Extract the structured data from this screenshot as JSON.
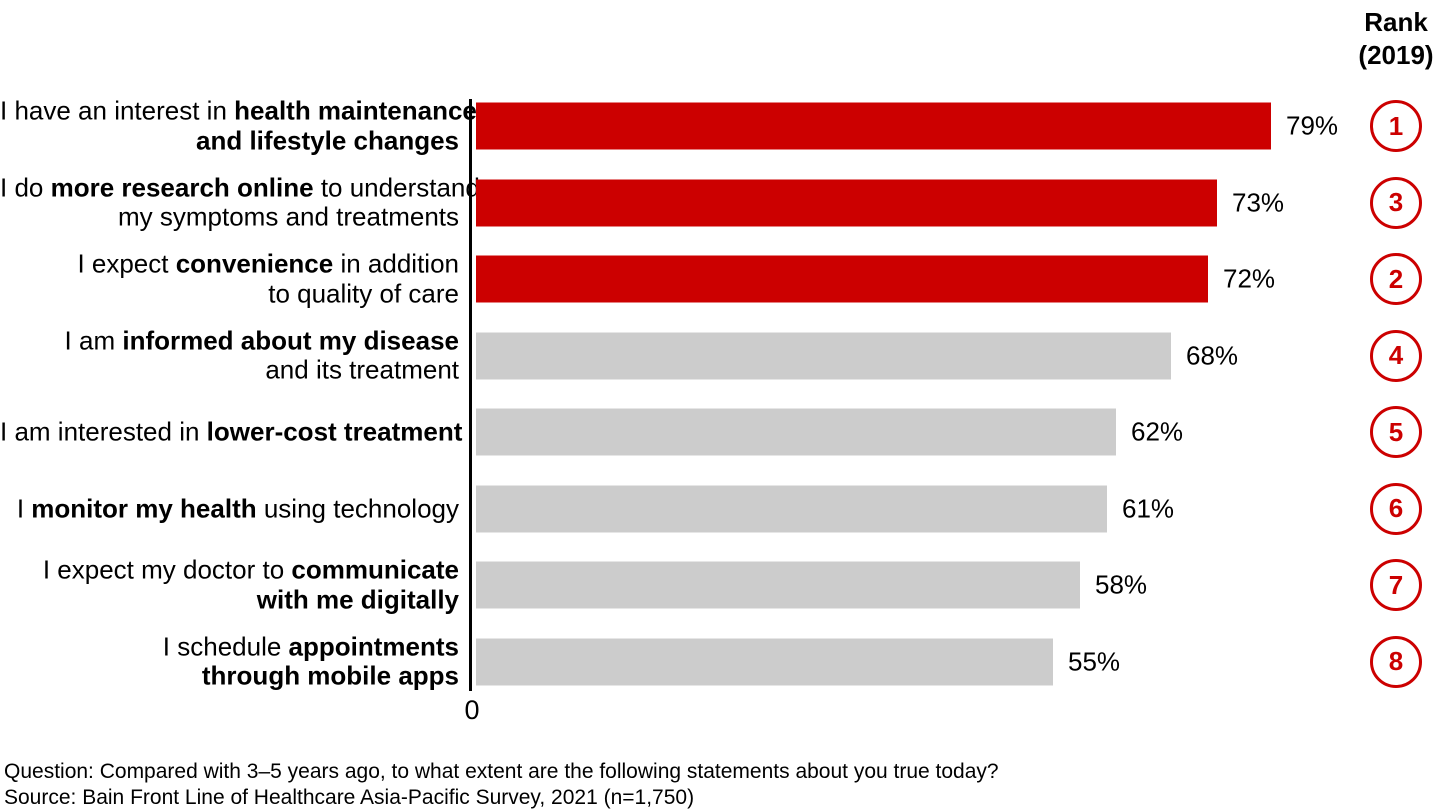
{
  "rank_header": {
    "line1": "Rank",
    "line2": "(2019)"
  },
  "axis": {
    "zero_label": "0"
  },
  "footer": {
    "question": "Question: Compared with 3–5 years ago, to what extent are the following statements about you true today?",
    "source": "Source: Bain Front Line of Healthcare Asia-Pacific Survey, 2021 (n=1,750)"
  },
  "colors": {
    "highlight_bar": "#CC0000",
    "muted_bar": "#CCCCCC",
    "rank_ring": "#CC0000",
    "rank_number": "#CC0000",
    "axis": "#000000",
    "text": "#000000"
  },
  "chart_data": {
    "type": "bar",
    "orientation": "horizontal",
    "unit": "percent",
    "title": "",
    "xlabel": "",
    "ylabel": "",
    "x_origin_tick": "0",
    "legend": null,
    "rank_column_title": "Rank (2019)",
    "categories": [
      "I have an interest in health maintenance and lifestyle changes",
      "I do more research online to understand my symptoms and treatments",
      "I expect convenience in addition to quality of care",
      "I am informed about my disease and its treatment",
      "I am interested in lower-cost treatment",
      "I monitor my health using technology",
      "I expect my doctor to communicate with me digitally",
      "I schedule appointments through mobile apps"
    ],
    "values": [
      79,
      73,
      72,
      68,
      62,
      61,
      58,
      55
    ],
    "ranks_2019": [
      1,
      3,
      2,
      4,
      5,
      6,
      7,
      8
    ],
    "items": [
      {
        "label_lines": [
          [
            {
              "t": "I have an interest in ",
              "b": false
            },
            {
              "t": "health maintenance",
              "b": true
            }
          ],
          [
            {
              "t": "and lifestyle changes",
              "b": true
            }
          ]
        ],
        "value": 79,
        "value_label": "79%",
        "emphasis": true,
        "rank_2019": "1"
      },
      {
        "label_lines": [
          [
            {
              "t": "I do ",
              "b": false
            },
            {
              "t": "more research online",
              "b": true
            },
            {
              "t": " to understand",
              "b": false
            }
          ],
          [
            {
              "t": "my symptoms and treatments",
              "b": false
            }
          ]
        ],
        "value": 73,
        "value_label": "73%",
        "emphasis": true,
        "rank_2019": "3"
      },
      {
        "label_lines": [
          [
            {
              "t": "I expect ",
              "b": false
            },
            {
              "t": "convenience",
              "b": true
            },
            {
              "t": " in addition",
              "b": false
            }
          ],
          [
            {
              "t": "to quality of care",
              "b": false
            }
          ]
        ],
        "value": 72,
        "value_label": "72%",
        "emphasis": true,
        "rank_2019": "2"
      },
      {
        "label_lines": [
          [
            {
              "t": "I am ",
              "b": false
            },
            {
              "t": "informed about my disease",
              "b": true
            }
          ],
          [
            {
              "t": "and its treatment",
              "b": false
            }
          ]
        ],
        "value": 68,
        "value_label": "68%",
        "emphasis": false,
        "rank_2019": "4"
      },
      {
        "label_lines": [
          [
            {
              "t": "I am interested in ",
              "b": false
            },
            {
              "t": "lower-cost treatment",
              "b": true
            }
          ]
        ],
        "value": 62,
        "value_label": "62%",
        "emphasis": false,
        "rank_2019": "5"
      },
      {
        "label_lines": [
          [
            {
              "t": "I ",
              "b": false
            },
            {
              "t": "monitor my health",
              "b": true
            },
            {
              "t": " using technology",
              "b": false
            }
          ]
        ],
        "value": 61,
        "value_label": "61%",
        "emphasis": false,
        "rank_2019": "6"
      },
      {
        "label_lines": [
          [
            {
              "t": "I expect my doctor to ",
              "b": false
            },
            {
              "t": "communicate",
              "b": true
            }
          ],
          [
            {
              "t": "with me digitally",
              "b": true
            }
          ]
        ],
        "value": 58,
        "value_label": "58%",
        "emphasis": false,
        "rank_2019": "7"
      },
      {
        "label_lines": [
          [
            {
              "t": "I schedule ",
              "b": false
            },
            {
              "t": "appointments",
              "b": true
            }
          ],
          [
            {
              "t": "through mobile apps",
              "b": true
            }
          ]
        ],
        "value": 55,
        "value_label": "55%",
        "emphasis": false,
        "rank_2019": "8"
      }
    ]
  }
}
